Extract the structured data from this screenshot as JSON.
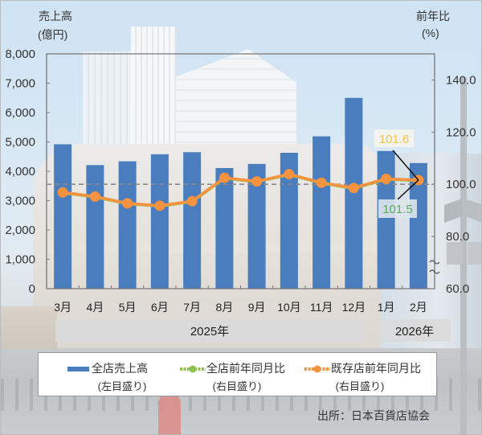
{
  "chart_data": {
    "type": "bar+line",
    "title": "",
    "categories": [
      "3月",
      "4月",
      "5月",
      "6月",
      "7月",
      "8月",
      "9月",
      "10月",
      "11月",
      "12月",
      "1月",
      "2月"
    ],
    "year_groups": [
      {
        "label": "2025年",
        "span": 10
      },
      {
        "label": "2026年",
        "span": 2
      }
    ],
    "series": [
      {
        "name": "全店売上高",
        "type": "bar",
        "axis": "left",
        "color": "#4a7dbd",
        "values": [
          4920,
          4210,
          4340,
          4580,
          4650,
          4110,
          4250,
          4630,
          5190,
          6500,
          4690,
          4280
        ]
      },
      {
        "name": "全店前年同月比",
        "type": "line",
        "axis": "right",
        "color": "#8ec24f",
        "values": [
          96.8,
          95.2,
          92.6,
          91.7,
          93.4,
          102.4,
          101.0,
          103.8,
          100.5,
          98.5,
          102.0,
          101.5
        ]
      },
      {
        "name": "既存店前年同月比",
        "type": "line",
        "axis": "right",
        "color": "#f69240",
        "values": [
          96.9,
          95.3,
          92.7,
          91.8,
          93.5,
          102.5,
          101.1,
          103.9,
          100.6,
          98.6,
          102.1,
          101.6
        ]
      }
    ],
    "left_axis": {
      "title": "売上高",
      "unit": "(億円)",
      "range": [
        0,
        8000
      ],
      "ticks": [
        0,
        1000,
        2000,
        3000,
        4000,
        5000,
        6000,
        7000,
        8000
      ],
      "tick_labels": [
        "0",
        "1,000",
        "2,000",
        "3,000",
        "4,000",
        "5,000",
        "6,000",
        "7,000",
        "8,000"
      ]
    },
    "right_axis": {
      "title": "前年比",
      "unit": "(%)",
      "range": [
        60,
        150
      ],
      "ticks": [
        60,
        80,
        100,
        120,
        140
      ],
      "tick_labels": [
        "60.0",
        "80.0",
        "100.0",
        "120.0",
        "140.0"
      ],
      "axis_break": true
    },
    "reference_line": {
      "axis": "right",
      "value": 100,
      "style": "dashed"
    },
    "annotations": [
      {
        "text": "101.6",
        "series": "既存店前年同月比",
        "category": "2月",
        "color": "#f2c244"
      },
      {
        "text": "101.5",
        "series": "全店前年同月比",
        "category": "2月",
        "color": "#5aaa5c"
      }
    ],
    "grid": false,
    "legend_position": "bottom"
  },
  "axes": {
    "left_title": "売上高",
    "left_unit": "(億円)",
    "right_title": "前年比",
    "right_unit": "(%)"
  },
  "years": {
    "y2025": "2025年",
    "y2026": "2026年"
  },
  "legend": {
    "items": [
      {
        "label": "全店売上高",
        "sub": "(左目盛り)",
        "color": "#4a7dbd"
      },
      {
        "label": "全店前年同月比",
        "sub": "(右目盛り)",
        "color": "#8ec24f"
      },
      {
        "label": "既存店前年同月比",
        "sub": "(右目盛り)",
        "color": "#f69240"
      }
    ]
  },
  "source": "出所：日本百貨店協会"
}
